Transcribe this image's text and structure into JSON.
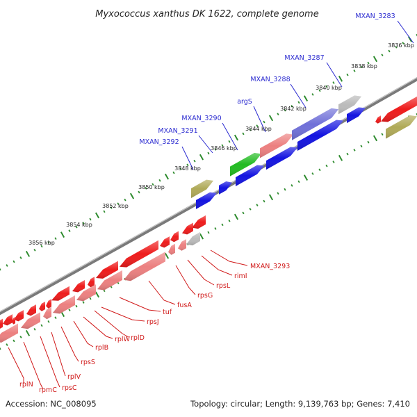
{
  "title": "Myxococcus xanthus DK 1622, complete genome",
  "footer": {
    "accession": "Accession: NC_008095",
    "summary": "Topology: circular; Length: 9,139,763 bp; Genes: 7,410"
  },
  "colors": {
    "forward_label": "#2a2ad0",
    "reverse_label": "#d01818",
    "backbone": "#7a7a7a",
    "tick": "#2e8b2e",
    "gene_blue": "#1414e0",
    "gene_red": "#ee1c1c",
    "gene_pink": "#ec8080",
    "gene_purple": "#7070d8",
    "gene_green": "#22bb22",
    "gene_olive": "#b0aa58",
    "gene_grey": "#bbbbbb"
  },
  "scale_labels": [
    "3836 kbp",
    "3838 kbp",
    "3840 kbp",
    "3842 kbp",
    "3844 kbp",
    "3846 kbp",
    "3848 kbp",
    "3850 kbp",
    "3852 kbp",
    "3854 kbp",
    "3856 kbp"
  ],
  "forward_labels": [
    "MXAN_3283",
    "MXAN_3287",
    "MXAN_3288",
    "argS",
    "MXAN_3290",
    "MXAN_3291",
    "MXAN_3292"
  ],
  "reverse_labels": [
    "MXAN_3293",
    "rimI",
    "rpsL",
    "rpsG",
    "fusA",
    "tuf",
    "rpsJ",
    "rplD",
    "rplW",
    "rplB",
    "rpsS",
    "rplV",
    "rpsC",
    "rpmC",
    "rplN"
  ]
}
